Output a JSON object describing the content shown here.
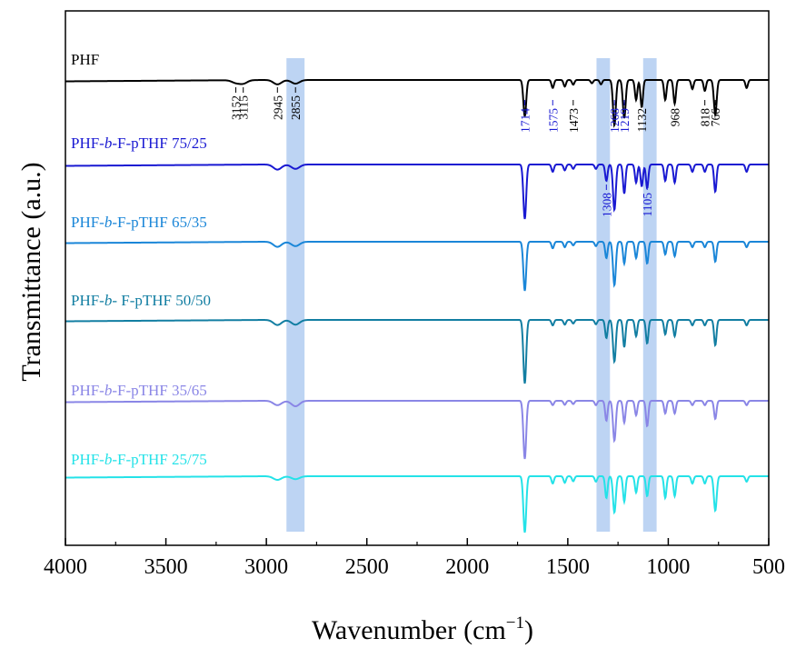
{
  "chart_data": {
    "type": "line",
    "title": "",
    "xlabel": "Wavenumber",
    "xlabel_unit": "(cm",
    "xlabel_unit_exp": "−1",
    "xlabel_unit_close": ")",
    "ylabel": "Transmittance (a.u.)",
    "xlim": [
      4000,
      500
    ],
    "x_reversed": true,
    "x_ticks": [
      4000,
      3500,
      3000,
      2500,
      2000,
      1500,
      1000,
      500
    ],
    "y_ticks_labeled": false,
    "grid": false,
    "highlight_bands": [
      {
        "from": 2900,
        "to": 2810,
        "color": "#aac8f0"
      },
      {
        "from": 1357,
        "to": 1290,
        "color": "#aac8f0"
      },
      {
        "from": 1125,
        "to": 1058,
        "color": "#aac8f0"
      }
    ],
    "series": [
      {
        "name": "PHF",
        "name_parts": [
          {
            "t": "PHF",
            "i": false
          }
        ],
        "color": "#000000",
        "peaks": [
          {
            "x": 3152,
            "d": 0.07
          },
          {
            "x": 3115,
            "d": 0.09
          },
          {
            "x": 2945,
            "d": 0.12
          },
          {
            "x": 2855,
            "d": 0.1
          },
          {
            "x": 1714,
            "d": 1.0
          },
          {
            "x": 1575,
            "d": 0.22
          },
          {
            "x": 1515,
            "d": 0.18
          },
          {
            "x": 1473,
            "d": 0.13
          },
          {
            "x": 1380,
            "d": 0.09
          },
          {
            "x": 1335,
            "d": 0.12
          },
          {
            "x": 1268,
            "d": 1.25
          },
          {
            "x": 1219,
            "d": 1.05
          },
          {
            "x": 1160,
            "d": 0.55
          },
          {
            "x": 1132,
            "d": 0.75
          },
          {
            "x": 1015,
            "d": 0.55
          },
          {
            "x": 968,
            "d": 0.65
          },
          {
            "x": 880,
            "d": 0.25
          },
          {
            "x": 818,
            "d": 0.3
          },
          {
            "x": 766,
            "d": 0.95
          },
          {
            "x": 610,
            "d": 0.22
          }
        ]
      },
      {
        "name": "PHF-b-F-pTHF 75/25",
        "name_parts": [
          {
            "t": "PHF-",
            "i": false
          },
          {
            "t": "b",
            "i": true
          },
          {
            "t": "-F-pTHF 75/25",
            "i": false
          }
        ],
        "color": "#1919d2",
        "peaks": [
          {
            "x": 2945,
            "d": 0.14
          },
          {
            "x": 2855,
            "d": 0.12
          },
          {
            "x": 1714,
            "d": 1.5
          },
          {
            "x": 1575,
            "d": 0.2
          },
          {
            "x": 1515,
            "d": 0.16
          },
          {
            "x": 1473,
            "d": 0.12
          },
          {
            "x": 1360,
            "d": 0.12
          },
          {
            "x": 1308,
            "d": 0.45
          },
          {
            "x": 1268,
            "d": 1.25
          },
          {
            "x": 1219,
            "d": 0.8
          },
          {
            "x": 1160,
            "d": 0.5
          },
          {
            "x": 1132,
            "d": 0.6
          },
          {
            "x": 1105,
            "d": 0.65
          },
          {
            "x": 1015,
            "d": 0.45
          },
          {
            "x": 968,
            "d": 0.5
          },
          {
            "x": 880,
            "d": 0.2
          },
          {
            "x": 818,
            "d": 0.2
          },
          {
            "x": 766,
            "d": 0.75
          },
          {
            "x": 610,
            "d": 0.2
          }
        ]
      },
      {
        "name": "PHF-b-F-pTHF 65/35",
        "name_parts": [
          {
            "t": "PHF-",
            "i": false
          },
          {
            "t": "b",
            "i": true
          },
          {
            "t": "-F-pTHF 65/35",
            "i": false
          }
        ],
        "color": "#1a86d8",
        "peaks": [
          {
            "x": 2945,
            "d": 0.14
          },
          {
            "x": 2855,
            "d": 0.12
          },
          {
            "x": 1714,
            "d": 1.35
          },
          {
            "x": 1575,
            "d": 0.18
          },
          {
            "x": 1515,
            "d": 0.15
          },
          {
            "x": 1473,
            "d": 0.1
          },
          {
            "x": 1360,
            "d": 0.12
          },
          {
            "x": 1308,
            "d": 0.45
          },
          {
            "x": 1268,
            "d": 1.2
          },
          {
            "x": 1219,
            "d": 0.6
          },
          {
            "x": 1160,
            "d": 0.45
          },
          {
            "x": 1105,
            "d": 0.6
          },
          {
            "x": 1015,
            "d": 0.35
          },
          {
            "x": 968,
            "d": 0.4
          },
          {
            "x": 880,
            "d": 0.15
          },
          {
            "x": 818,
            "d": 0.15
          },
          {
            "x": 766,
            "d": 0.55
          },
          {
            "x": 610,
            "d": 0.15
          }
        ]
      },
      {
        "name": "PHF-b- F-pTHF 50/50",
        "name_parts": [
          {
            "t": "PHF-",
            "i": false
          },
          {
            "t": "b",
            "i": true
          },
          {
            "t": "- F-pTHF 50/50",
            "i": false
          }
        ],
        "color": "#127ea2",
        "peaks": [
          {
            "x": 2945,
            "d": 0.14
          },
          {
            "x": 2855,
            "d": 0.13
          },
          {
            "x": 1714,
            "d": 1.75
          },
          {
            "x": 1575,
            "d": 0.15
          },
          {
            "x": 1515,
            "d": 0.13
          },
          {
            "x": 1473,
            "d": 0.1
          },
          {
            "x": 1360,
            "d": 0.12
          },
          {
            "x": 1308,
            "d": 0.5
          },
          {
            "x": 1268,
            "d": 1.15
          },
          {
            "x": 1219,
            "d": 0.75
          },
          {
            "x": 1160,
            "d": 0.45
          },
          {
            "x": 1105,
            "d": 0.65
          },
          {
            "x": 1015,
            "d": 0.4
          },
          {
            "x": 968,
            "d": 0.45
          },
          {
            "x": 880,
            "d": 0.15
          },
          {
            "x": 818,
            "d": 0.15
          },
          {
            "x": 766,
            "d": 0.7
          },
          {
            "x": 610,
            "d": 0.15
          }
        ]
      },
      {
        "name": "PHF-b-F-pTHF 35/65",
        "name_parts": [
          {
            "t": "PHF-",
            "i": false
          },
          {
            "t": "b",
            "i": true
          },
          {
            "t": "-F-pTHF 35/65",
            "i": false
          }
        ],
        "color": "#8a86e6",
        "peaks": [
          {
            "x": 2945,
            "d": 0.12
          },
          {
            "x": 2855,
            "d": 0.15
          },
          {
            "x": 1714,
            "d": 1.6
          },
          {
            "x": 1575,
            "d": 0.12
          },
          {
            "x": 1515,
            "d": 0.11
          },
          {
            "x": 1473,
            "d": 0.09
          },
          {
            "x": 1360,
            "d": 0.12
          },
          {
            "x": 1308,
            "d": 0.55
          },
          {
            "x": 1268,
            "d": 1.1
          },
          {
            "x": 1219,
            "d": 0.6
          },
          {
            "x": 1160,
            "d": 0.4
          },
          {
            "x": 1105,
            "d": 0.7
          },
          {
            "x": 1015,
            "d": 0.35
          },
          {
            "x": 968,
            "d": 0.35
          },
          {
            "x": 880,
            "d": 0.12
          },
          {
            "x": 818,
            "d": 0.12
          },
          {
            "x": 766,
            "d": 0.5
          },
          {
            "x": 610,
            "d": 0.12
          }
        ]
      },
      {
        "name": "PHF-b-F-pTHF 25/75",
        "name_parts": [
          {
            "t": "PHF-",
            "i": false
          },
          {
            "t": "b",
            "i": true
          },
          {
            "t": "-F-pTHF 25/75",
            "i": false
          }
        ],
        "color": "#24e2e8",
        "peaks": [
          {
            "x": 2945,
            "d": 0.1
          },
          {
            "x": 2855,
            "d": 0.08
          },
          {
            "x": 1714,
            "d": 1.55
          },
          {
            "x": 1575,
            "d": 0.2
          },
          {
            "x": 1515,
            "d": 0.18
          },
          {
            "x": 1473,
            "d": 0.14
          },
          {
            "x": 1360,
            "d": 0.15
          },
          {
            "x": 1308,
            "d": 0.6
          },
          {
            "x": 1268,
            "d": 1.0
          },
          {
            "x": 1219,
            "d": 0.7
          },
          {
            "x": 1160,
            "d": 0.45
          },
          {
            "x": 1105,
            "d": 0.55
          },
          {
            "x": 1015,
            "d": 0.6
          },
          {
            "x": 968,
            "d": 0.55
          },
          {
            "x": 880,
            "d": 0.2
          },
          {
            "x": 818,
            "d": 0.2
          },
          {
            "x": 766,
            "d": 0.95
          },
          {
            "x": 610,
            "d": 0.15
          }
        ]
      }
    ],
    "annotations": [
      {
        "text": "3152",
        "x": 3152,
        "series": 0,
        "color": "#000000"
      },
      {
        "text": "3115",
        "x": 3115,
        "series": 0,
        "color": "#000000"
      },
      {
        "text": "2945",
        "x": 2945,
        "series": 0,
        "color": "#000000"
      },
      {
        "text": "2855",
        "x": 2855,
        "series": 0,
        "color": "#000000"
      },
      {
        "text": "1714",
        "x": 1714,
        "series": 0,
        "color": "#1919d2"
      },
      {
        "text": "1575",
        "x": 1575,
        "series": 0,
        "color": "#1919d2"
      },
      {
        "text": "1473",
        "x": 1473,
        "series": 0,
        "color": "#000000"
      },
      {
        "text": "1268",
        "x": 1268,
        "series": 0,
        "color": "#1919d2"
      },
      {
        "text": "1219",
        "x": 1219,
        "series": 0,
        "color": "#1919d2"
      },
      {
        "text": "1132",
        "x": 1132,
        "series": 0,
        "color": "#000000"
      },
      {
        "text": "968",
        "x": 968,
        "series": 0,
        "color": "#000000"
      },
      {
        "text": "818",
        "x": 818,
        "series": 0,
        "color": "#000000"
      },
      {
        "text": "766",
        "x": 766,
        "series": 0,
        "color": "#000000"
      },
      {
        "text": "1308",
        "x": 1308,
        "series": 1,
        "color": "#1919d2"
      },
      {
        "text": "1105",
        "x": 1105,
        "series": 1,
        "color": "#1919d2"
      }
    ]
  }
}
